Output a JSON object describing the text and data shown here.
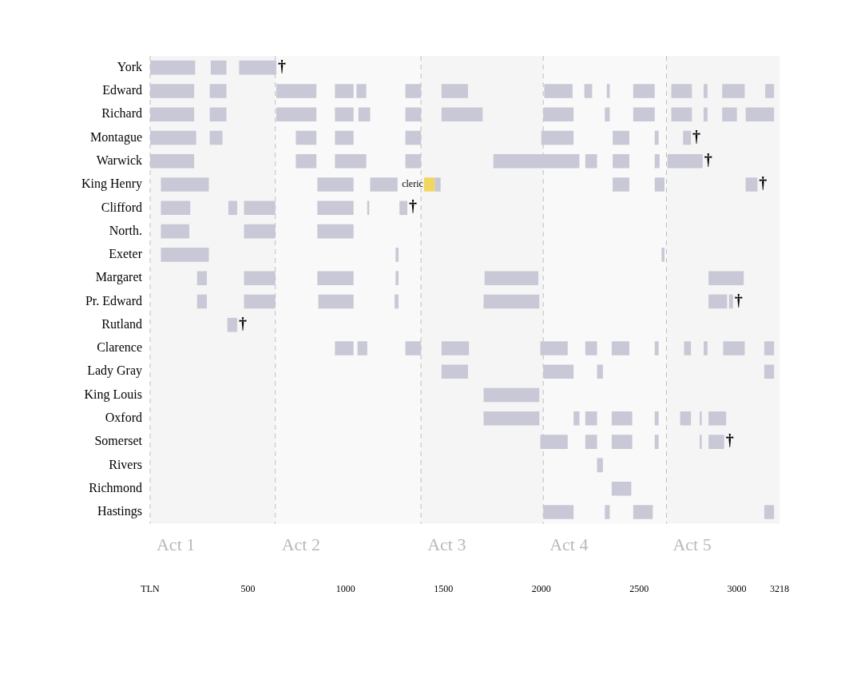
{
  "chart_data": {
    "type": "bar",
    "orientation": "horizontal",
    "categories": [
      "York",
      "Edward",
      "Richard",
      "Montague",
      "Warwick",
      "King Henry",
      "Clifford",
      "North.",
      "Exeter",
      "Margaret",
      "Pr. Edward",
      "Rutland",
      "Clarence",
      "Lady Gray",
      "King Louis",
      "Oxford",
      "Somerset",
      "Rivers",
      "Richmond",
      "Hastings"
    ],
    "xlim": [
      0,
      3218
    ],
    "xticks": [
      {
        "value": 0,
        "label": "TLN"
      },
      500,
      1000,
      1500,
      2000,
      2500,
      3000,
      3218
    ],
    "series": [
      {
        "color": "#c8c8d6",
        "base": [
          0,
          0,
          0,
          0,
          0,
          55,
          55,
          55,
          55,
          240,
          240,
          395,
          945,
          1490,
          1705,
          1705,
          1995,
          2285,
          2360,
          2010
        ],
        "values": [
          230,
          225,
          225,
          235,
          225,
          245,
          150,
          145,
          245,
          50,
          50,
          50,
          95,
          135,
          285,
          285,
          140,
          30,
          100,
          155
        ]
      },
      {
        "color": "#c8c8d6",
        "base": [
          310,
          305,
          305,
          305,
          745,
          855,
          400,
          480,
          1255,
          480,
          480,
          null,
          1060,
          2010,
          null,
          2165,
          2225,
          null,
          null,
          2325
        ],
        "values": [
          80,
          85,
          85,
          65,
          105,
          185,
          45,
          160,
          15,
          160,
          160,
          null,
          50,
          155,
          null,
          30,
          60,
          null,
          null,
          25
        ]
      },
      {
        "color": "#c8c8d6",
        "base": [
          455,
          645,
          645,
          745,
          945,
          1125,
          480,
          855,
          2615,
          855,
          860,
          null,
          1305,
          2285,
          null,
          2225,
          2360,
          null,
          null,
          2470
        ],
        "values": [
          190,
          205,
          205,
          105,
          160,
          140,
          160,
          185,
          15,
          185,
          180,
          null,
          80,
          30,
          null,
          60,
          105,
          null,
          null,
          100
        ]
      },
      {
        "color": "#c8c8d6",
        "base": [
          null,
          945,
          945,
          945,
          1305,
          1455,
          855,
          null,
          null,
          1255,
          1250,
          null,
          1490,
          3140,
          null,
          2360,
          2580,
          null,
          null,
          3140
        ],
        "values": [
          null,
          95,
          95,
          95,
          80,
          30,
          185,
          null,
          null,
          15,
          20,
          null,
          140,
          50,
          null,
          105,
          20,
          null,
          null,
          50
        ]
      },
      {
        "color": "#c8c8d6",
        "base": [
          null,
          1055,
          1065,
          1305,
          1755,
          2365,
          1110,
          null,
          null,
          1710,
          1705,
          null,
          1995,
          null,
          null,
          2580,
          2810,
          null,
          null,
          null
        ],
        "values": [
          null,
          50,
          60,
          80,
          440,
          85,
          10,
          null,
          null,
          275,
          285,
          null,
          140,
          null,
          null,
          20,
          10,
          null,
          null,
          null
        ]
      },
      {
        "color": "#c8c8d6",
        "base": [
          null,
          1305,
          1305,
          2000,
          2225,
          2580,
          1275,
          null,
          null,
          2855,
          2855,
          null,
          2225,
          null,
          null,
          2710,
          2855,
          null,
          null,
          null
        ],
        "values": [
          null,
          80,
          80,
          165,
          60,
          50,
          40,
          null,
          null,
          180,
          95,
          null,
          60,
          null,
          null,
          55,
          80,
          null,
          null,
          null
        ]
      },
      {
        "color": "#c8c8d6",
        "base": [
          null,
          1490,
          1490,
          2365,
          2365,
          3045,
          null,
          null,
          null,
          null,
          2960,
          null,
          2360,
          null,
          null,
          2810,
          null,
          null,
          null,
          null
        ],
        "values": [
          null,
          135,
          210,
          85,
          85,
          60,
          null,
          null,
          null,
          null,
          20,
          null,
          90,
          null,
          null,
          10,
          null,
          null,
          null,
          null
        ]
      },
      {
        "color": "#c8c8d6",
        "base": [
          null,
          2015,
          2010,
          2580,
          2580,
          null,
          null,
          null,
          null,
          null,
          null,
          null,
          2580,
          null,
          null,
          2855,
          null,
          null,
          null,
          null
        ],
        "values": [
          null,
          145,
          155,
          20,
          25,
          null,
          null,
          null,
          null,
          null,
          null,
          null,
          20,
          null,
          null,
          90,
          null,
          null,
          null,
          null
        ]
      },
      {
        "color": "#c8c8d6",
        "base": [
          null,
          2220,
          2325,
          2725,
          2645,
          null,
          null,
          null,
          null,
          null,
          null,
          null,
          2730,
          null,
          null,
          null,
          null,
          null,
          null,
          null
        ],
        "values": [
          null,
          40,
          25,
          40,
          180,
          null,
          null,
          null,
          null,
          null,
          null,
          null,
          35,
          null,
          null,
          null,
          null,
          null,
          null,
          null
        ]
      },
      {
        "color": "#c8c8d6",
        "base": [
          null,
          2335,
          2470,
          null,
          null,
          null,
          null,
          null,
          null,
          null,
          null,
          null,
          2830,
          null,
          null,
          null,
          null,
          null,
          null,
          null
        ],
        "values": [
          null,
          15,
          110,
          null,
          null,
          null,
          null,
          null,
          null,
          null,
          null,
          null,
          20,
          null,
          null,
          null,
          null,
          null,
          null,
          null
        ]
      },
      {
        "color": "#c8c8d6",
        "base": [
          null,
          2470,
          2665,
          null,
          null,
          null,
          null,
          null,
          null,
          null,
          null,
          null,
          2930,
          null,
          null,
          null,
          null,
          null,
          null,
          null
        ],
        "values": [
          null,
          110,
          105,
          null,
          null,
          null,
          null,
          null,
          null,
          null,
          null,
          null,
          110,
          null,
          null,
          null,
          null,
          null,
          null,
          null
        ]
      },
      {
        "color": "#c8c8d6",
        "base": [
          null,
          2665,
          2830,
          null,
          null,
          null,
          null,
          null,
          null,
          null,
          null,
          null,
          3140,
          null,
          null,
          null,
          null,
          null,
          null,
          null
        ],
        "values": [
          null,
          105,
          20,
          null,
          null,
          null,
          null,
          null,
          null,
          null,
          null,
          null,
          50,
          null,
          null,
          null,
          null,
          null,
          null,
          null
        ]
      },
      {
        "color": "#c8c8d6",
        "base": [
          null,
          2830,
          2925,
          null,
          null,
          null,
          null,
          null,
          null,
          null,
          null,
          null,
          null,
          null,
          null,
          null,
          null,
          null,
          null,
          null
        ],
        "values": [
          null,
          20,
          75,
          null,
          null,
          null,
          null,
          null,
          null,
          null,
          null,
          null,
          null,
          null,
          null,
          null,
          null,
          null,
          null,
          null
        ]
      },
      {
        "color": "#c8c8d6",
        "base": [
          null,
          2925,
          3045,
          null,
          null,
          null,
          null,
          null,
          null,
          null,
          null,
          null,
          null,
          null,
          null,
          null,
          null,
          null,
          null,
          null
        ],
        "values": [
          null,
          115,
          145,
          null,
          null,
          null,
          null,
          null,
          null,
          null,
          null,
          null,
          null,
          null,
          null,
          null,
          null,
          null,
          null,
          null
        ]
      },
      {
        "color": "#c8c8d6",
        "base": [
          null,
          3145,
          null,
          null,
          null,
          null,
          null,
          null,
          null,
          null,
          null,
          null,
          null,
          null,
          null,
          null,
          null,
          null,
          null,
          null
        ],
        "values": [
          null,
          45,
          null,
          null,
          null,
          null,
          null,
          null,
          null,
          null,
          null,
          null,
          null,
          null,
          null,
          null,
          null,
          null,
          null,
          null
        ]
      },
      {
        "name": "cleric",
        "color": "#f0d860",
        "base": [
          null,
          null,
          null,
          null,
          null,
          1400,
          null,
          null,
          null,
          null,
          null,
          null,
          null,
          null,
          null,
          null,
          null,
          null,
          null,
          null
        ],
        "values": [
          null,
          null,
          null,
          null,
          null,
          55,
          null,
          null,
          null,
          null,
          null,
          null,
          null,
          null,
          null,
          null,
          null,
          null,
          null,
          null
        ]
      }
    ],
    "bands": [
      {
        "axis": "x",
        "from": 0,
        "to": 640,
        "label": "Act 1",
        "color": "#f5f5f5"
      },
      {
        "axis": "x",
        "from": 640,
        "to": 1385,
        "label": "Act 2",
        "color": "#f9f9f9"
      },
      {
        "axis": "x",
        "from": 1385,
        "to": 2010,
        "label": "Act 3",
        "color": "#f5f5f5"
      },
      {
        "axis": "x",
        "from": 2010,
        "to": 2640,
        "label": "Act 4",
        "color": "#f9f9f9"
      },
      {
        "axis": "x",
        "from": 2640,
        "to": 3218,
        "label": "Act 5",
        "color": "#f5f5f5"
      }
    ],
    "annotations": [
      {
        "text": "†",
        "x": 645,
        "y": "York"
      },
      {
        "text": "†",
        "x": 2765,
        "y": "Montague"
      },
      {
        "text": "†",
        "x": 2825,
        "y": "Warwick"
      },
      {
        "text": "†",
        "x": 3105,
        "y": "King Henry"
      },
      {
        "text": "†",
        "x": 1315,
        "y": "Clifford"
      },
      {
        "text": "†",
        "x": 2980,
        "y": "Pr. Edward"
      },
      {
        "text": "†",
        "x": 445,
        "y": "Rutland"
      },
      {
        "text": "†",
        "x": 2935,
        "y": "Somerset"
      }
    ]
  }
}
